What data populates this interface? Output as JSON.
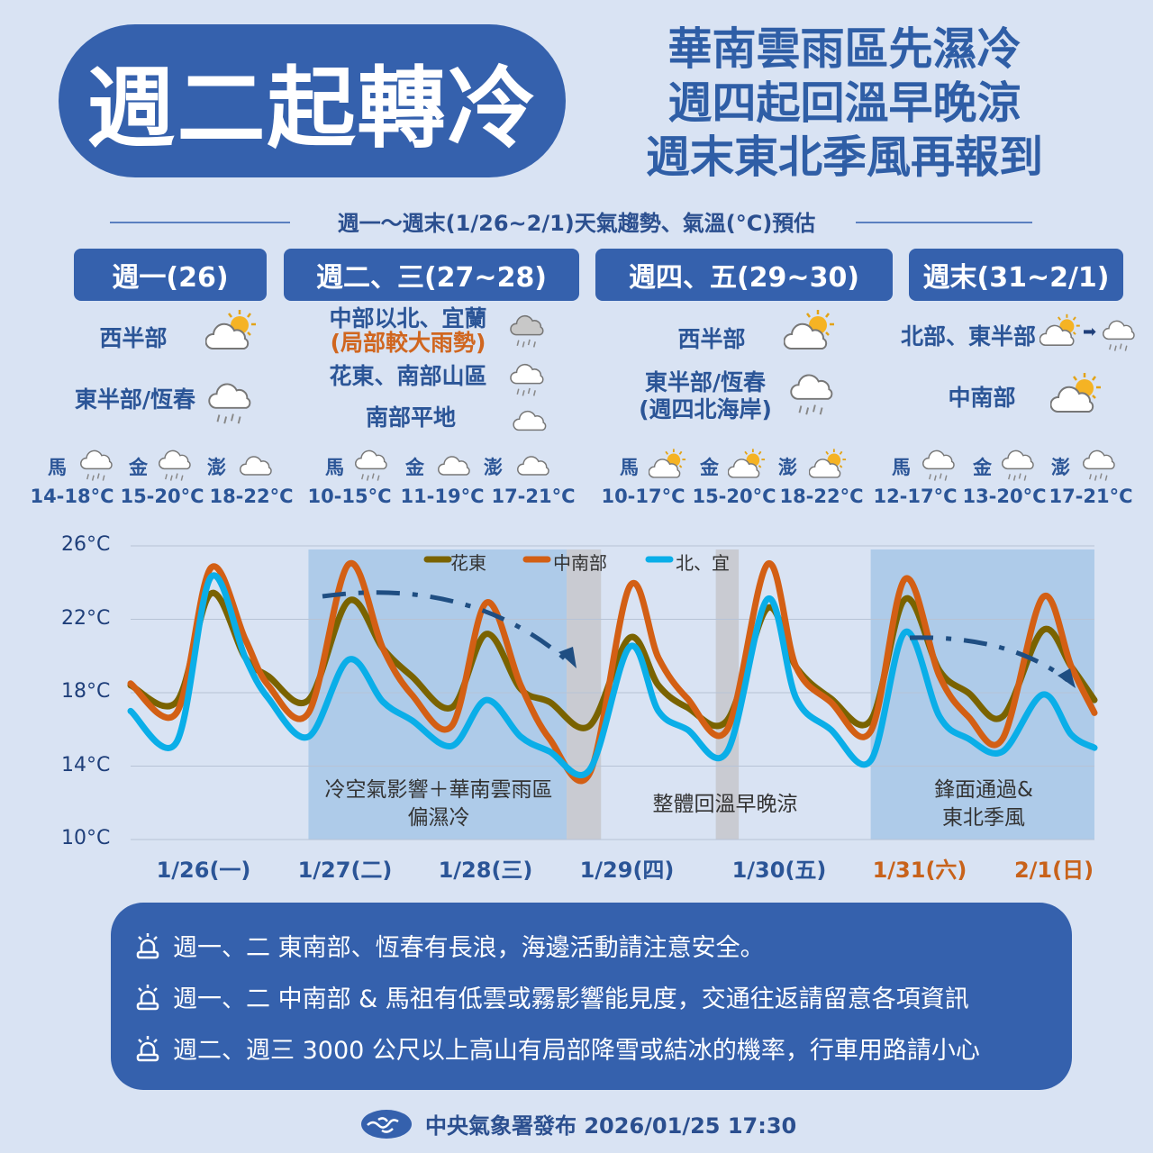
{
  "header": {
    "title": "週二起轉冷",
    "headline": [
      "華南雲雨區先濕冷",
      "週四起回溫早晚涼",
      "週末東北季風再報到"
    ]
  },
  "subtitle": "週一～週末(1/26~2/1)天氣趨勢、氣溫(°C)預估",
  "periods": [
    {
      "label": "週一(26)",
      "regions": [
        {
          "name": "西半部",
          "icon": "sun-cloud"
        },
        {
          "name": "東半部/恆春",
          "icon": "rain-cloud"
        }
      ],
      "islands": [
        {
          "name": "馬",
          "icon": "rain-cloud",
          "temp": "14-18°C"
        },
        {
          "name": "金",
          "icon": "rain-cloud",
          "temp": "15-20°C"
        },
        {
          "name": "澎",
          "icon": "cloud",
          "temp": "18-22°C"
        }
      ]
    },
    {
      "label": "週二、三(27~28)",
      "regions": [
        {
          "name": "中部以北、宜蘭",
          "note": "(局部較大雨勢)",
          "icon": "gray-rain-cloud"
        },
        {
          "name": "花東、南部山區",
          "icon": "rain-cloud"
        },
        {
          "name": "南部平地",
          "icon": "cloud"
        }
      ],
      "islands": [
        {
          "name": "馬",
          "icon": "rain-cloud",
          "temp": "10-15°C"
        },
        {
          "name": "金",
          "icon": "cloud",
          "temp": "11-19°C"
        },
        {
          "name": "澎",
          "icon": "cloud",
          "temp": "17-21°C"
        }
      ]
    },
    {
      "label": "週四、五(29~30)",
      "regions": [
        {
          "name": "西半部",
          "icon": "sun-cloud"
        },
        {
          "name": "東半部/恆春",
          "note": "(週四北海岸)",
          "icon": "rain-cloud"
        }
      ],
      "islands": [
        {
          "name": "馬",
          "icon": "sun-cloud",
          "temp": "10-17°C"
        },
        {
          "name": "金",
          "icon": "sun-cloud",
          "temp": "15-20°C"
        },
        {
          "name": "澎",
          "icon": "sun-cloud",
          "temp": "18-22°C"
        }
      ]
    },
    {
      "label": "週末(31~2/1)",
      "regions": [
        {
          "name": "北部、東半部",
          "icon": "sun-cloud",
          "icon_after": "rain-cloud"
        },
        {
          "name": "中南部",
          "icon": "sun-cloud"
        }
      ],
      "islands": [
        {
          "name": "馬",
          "icon": "rain-cloud",
          "temp": "12-17°C"
        },
        {
          "name": "金",
          "icon": "rain-cloud",
          "temp": "13-20°C"
        },
        {
          "name": "澎",
          "icon": "rain-cloud",
          "temp": "17-21°C"
        }
      ]
    }
  ],
  "chart_data": {
    "type": "line",
    "ylim": [
      10,
      26
    ],
    "y_ticks": [
      "26°C",
      "22°C",
      "18°C",
      "14°C",
      "10°C"
    ],
    "x_ticks": [
      "1/26(一)",
      "1/27(二)",
      "1/28(三)",
      "1/29(四)",
      "1/30(五)",
      "1/31(六)",
      "2/1(日)"
    ],
    "x_tick_colors": [
      "#2b5597",
      "#2b5597",
      "#2b5597",
      "#2b5597",
      "#2b5597",
      "#c8621a",
      "#c8621a"
    ],
    "grid": true,
    "legend_position": "top",
    "x": [
      "1/26 00:00",
      "1/26 08:00",
      "1/26 14:00",
      "1/26 20:00",
      "1/27 00:00",
      "1/27 07:00",
      "1/27 14:00",
      "1/27 20:00",
      "1/28 01:00",
      "1/28 08:00",
      "1/28 14:00",
      "1/28 20:00",
      "1/29 01:00",
      "1/29 08:00",
      "1/29 15:00",
      "1/29 20:00",
      "1/30 01:00",
      "1/30 08:00",
      "1/30 15:00",
      "1/30 20:00",
      "1/31 02:00",
      "1/31 09:00",
      "1/31 15:00",
      "1/31 21:00",
      "2/1 02:00",
      "2/1 08:00",
      "2/1 15:00",
      "2/1 20:00",
      "2/2 00:00"
    ],
    "series": [
      {
        "name": "花東",
        "color": "#7a6300",
        "values": [
          18.4,
          17.5,
          23.4,
          19.9,
          18.9,
          17.6,
          23.0,
          20.4,
          18.9,
          17.2,
          21.2,
          18.2,
          17.5,
          16.2,
          21.0,
          18.4,
          17.2,
          16.5,
          22.6,
          19.4,
          17.7,
          16.5,
          23.1,
          19.2,
          18.0,
          16.7,
          21.4,
          19.4,
          17.6
        ]
      },
      {
        "name": "中南部",
        "color": "#d35f14",
        "values": [
          18.5,
          16.9,
          24.8,
          20.9,
          18.4,
          16.9,
          25.0,
          20.4,
          17.9,
          16.2,
          22.9,
          18.4,
          15.5,
          13.6,
          23.8,
          19.9,
          17.7,
          16.0,
          25.0,
          19.4,
          17.5,
          15.9,
          24.2,
          18.9,
          16.7,
          15.5,
          23.2,
          19.4,
          16.9
        ]
      },
      {
        "name": "北、宜",
        "color": "#0aaee8",
        "values": [
          17.0,
          15.3,
          24.3,
          19.9,
          17.7,
          15.6,
          19.8,
          17.5,
          16.5,
          15.1,
          17.6,
          15.6,
          14.8,
          13.8,
          20.5,
          17.0,
          16.0,
          14.8,
          23.1,
          17.7,
          16.0,
          14.3,
          21.3,
          16.7,
          15.5,
          14.8,
          17.9,
          15.7,
          15.0
        ]
      }
    ],
    "shaded_ranges": [
      {
        "start": "1/27 07:00",
        "end": "1/29 04:00",
        "color": "#aecbe9",
        "text": [
          "冷空氣影響＋華南雲雨區",
          "偏濕冷"
        ]
      },
      {
        "start": "1/29 04:00",
        "end": "1/29 10:00",
        "color": "#c9cbd2"
      },
      {
        "start": "1/30 06:00",
        "end": "1/30 10:00",
        "color": "#c9cbd2"
      },
      {
        "start": "1/31 09:00",
        "end": "2/2 00:00",
        "color": "#aecbe9",
        "text": [
          "鋒面通過&",
          "東北季風"
        ]
      }
    ],
    "annotation_mid": "整體回溫早晚涼"
  },
  "notes": [
    "週一、二  東南部、恆春有長浪，海邊活動請注意安全。",
    "週一、二  中南部 & 馬祖有低雲或霧影響能見度，交通往返請留意各項資訊",
    "週二、週三 3000 公尺以上高山有局部降雪或結冰的機率，行車用路請小心"
  ],
  "footer": "中央氣象署發布 2026/01/25 17:30"
}
